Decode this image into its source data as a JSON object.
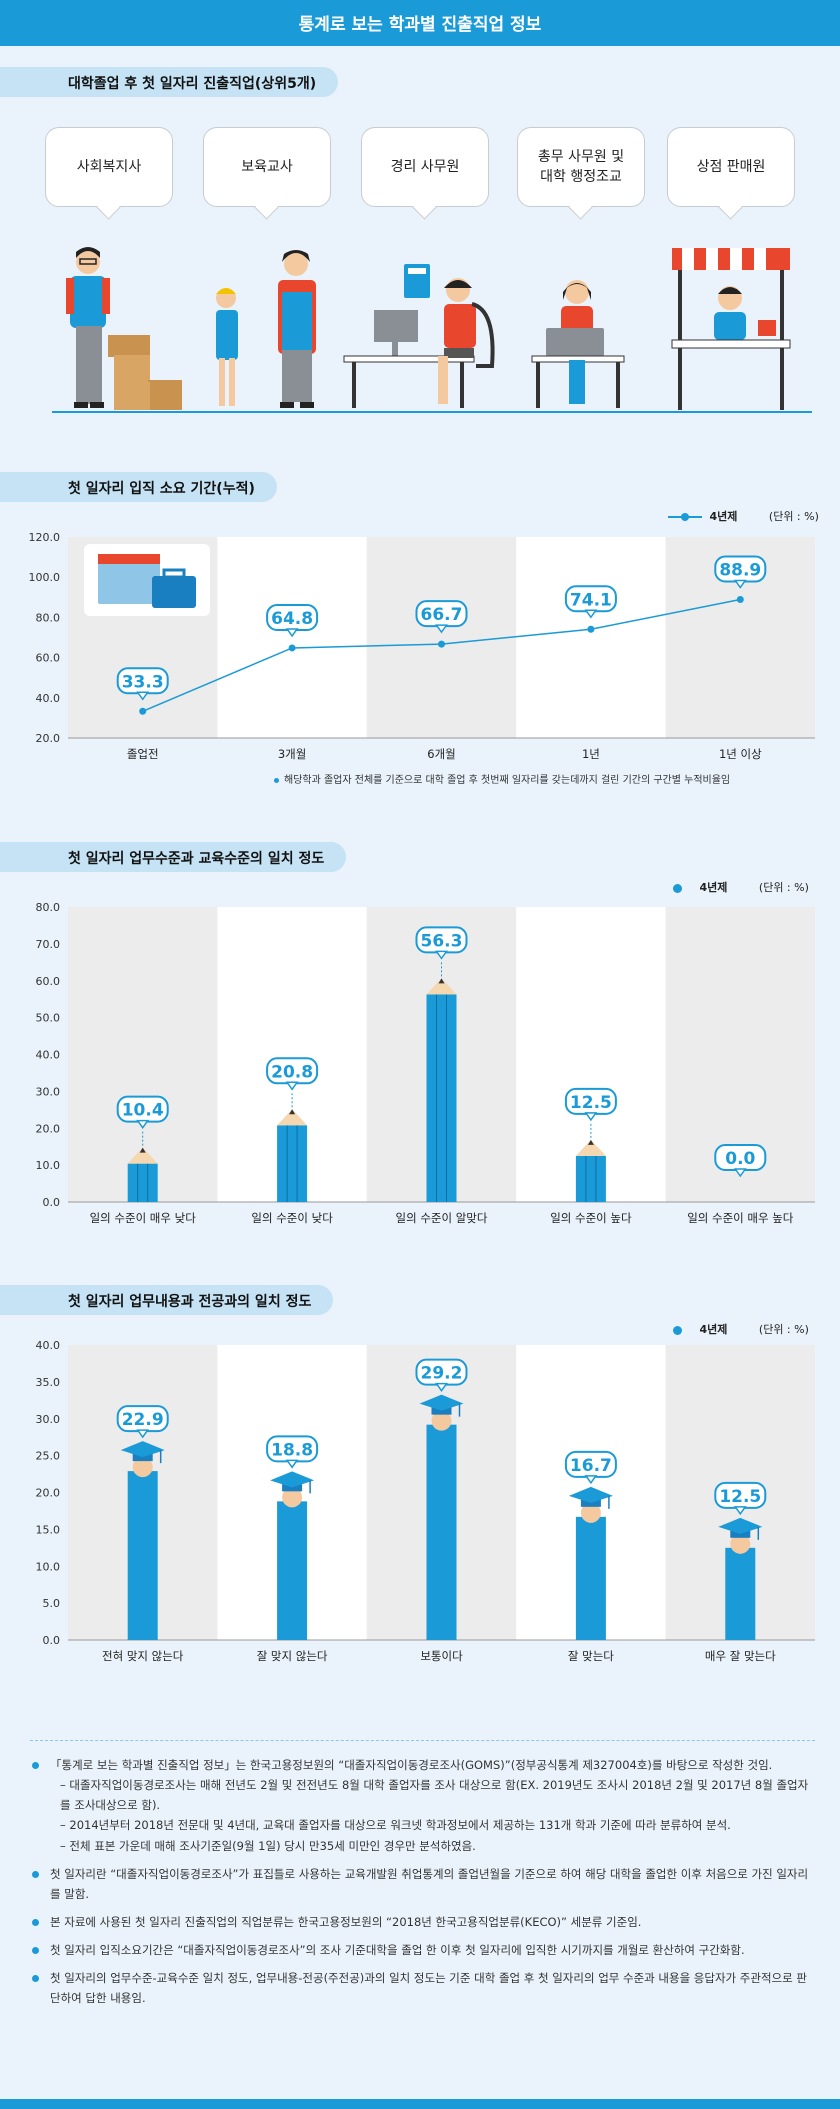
{
  "header": {
    "title": "통계로 보는 학과별 진출직업 정보"
  },
  "section1": {
    "title": "대학졸업 후 첫 일자리 진출직업(상위5개)",
    "jobs": [
      "사회복지사",
      "보육교사",
      "경리 사무원",
      "총무 사무원 및\n대학 행정조교",
      "상점 판매원"
    ]
  },
  "colors": {
    "accent": "#1a9ad6",
    "bar": "#1a9ad6",
    "pill": "#c5e3f5",
    "band": "#ececec",
    "background": "#eaf3fb"
  },
  "chart_data": [
    {
      "type": "line",
      "title": "첫 일자리 입직 소요 기간(누적)",
      "categories": [
        "졸업전",
        "3개월",
        "6개월",
        "1년",
        "1년 이상"
      ],
      "series": [
        {
          "name": "4년제",
          "values": [
            33.3,
            64.8,
            66.7,
            74.1,
            88.9
          ]
        }
      ],
      "ylim": [
        20,
        120
      ],
      "yticks": [
        "20.0",
        "40.0",
        "60.0",
        "80.0",
        "100.0",
        "120.0"
      ],
      "unit": "(단위 : %)",
      "note": "해당학과 졸업자 전체를 기준으로 대학 졸업 후 첫번째 일자리를 갖는데까지 걸린 기간의 구간별 누적비율임",
      "legend_position": "top-right",
      "icons": [
        "calendar-icon",
        "briefcase-icon"
      ]
    },
    {
      "type": "bar",
      "title": "첫 일자리 업무수준과 교육수준의 일치 정도",
      "categories": [
        "일의 수준이 매우 낮다",
        "일의 수준이 낮다",
        "일의 수준이 알맞다",
        "일의 수준이 높다",
        "일의 수준이 매우 높다"
      ],
      "series": [
        {
          "name": "4년제",
          "values": [
            10.4,
            20.8,
            56.3,
            12.5,
            0.0
          ]
        }
      ],
      "ylim": [
        0,
        80
      ],
      "yticks": [
        "0.0",
        "10.0",
        "20.0",
        "30.0",
        "40.0",
        "50.0",
        "60.0",
        "70.0",
        "80.0"
      ],
      "unit": "(단위 : %)",
      "legend_position": "top-right",
      "bar_style": "pencil"
    },
    {
      "type": "bar",
      "title": "첫 일자리 업무내용과 전공과의 일치 정도",
      "categories": [
        "전혀 맞지 않는다",
        "잘 맞지 않는다",
        "보통이다",
        "잘 맞는다",
        "매우 잘 맞는다"
      ],
      "series": [
        {
          "name": "4년제",
          "values": [
            22.9,
            18.8,
            29.2,
            16.7,
            12.5
          ]
        }
      ],
      "ylim": [
        0,
        40
      ],
      "yticks": [
        "0.0",
        "5.0",
        "10.0",
        "15.0",
        "20.0",
        "25.0",
        "30.0",
        "35.0",
        "40.0"
      ],
      "unit": "(단위 : %)",
      "legend_position": "top-right",
      "bar_style": "graduate"
    }
  ],
  "notes": [
    {
      "text": "「통계로 보는 학과별 진출직업 정보」는 한국고용정보원의 “대졸자직업이동경로조사(GOMS)”(정부공식통계 제327004호)를 바탕으로 작성한 것임.",
      "subs": [
        "– 대졸자직업이동경로조사는 매해 전년도 2월 및 전전년도 8월 대학 졸업자를 조사 대상으로 함(EX. 2019년도 조사시 2018년 2월 및 2017년 8월 졸업자를 조사대상으로 함).",
        "– 2014년부터 2018년 전문대 및 4년대, 교육대 졸업자를 대상으로 워크넷 학과정보에서 제공하는 131개 학과 기준에 따라 분류하여 분석.",
        "– 전체 표본 가운데 매해 조사기준일(9월 1일) 당시 만35세 미만인 경우만 분석하였음."
      ]
    },
    {
      "text": "첫 일자리란 “대졸자직업이동경로조사”가 표집틀로 사용하는 교육개발원 취업통계의 졸업년월을 기준으로 하여 해당 대학을 졸업한 이후 처음으로 가진 일자리를 말함.",
      "subs": []
    },
    {
      "text": "본 자료에 사용된 첫 일자리 진출직업의 직업분류는 한국고용정보원의 “2018년 한국고용직업분류(KECO)” 세분류 기준임.",
      "subs": []
    },
    {
      "text": "첫 일자리 입직소요기간은 “대졸자직업이동경로조사”의 조사 기준대학을 졸업 한 이후 첫 일자리에 입직한 시기까지를 개월로 환산하여 구간화함.",
      "subs": []
    },
    {
      "text": "첫 일자리의 업무수준-교육수준 일치 정도, 업무내용-전공(주전공)과의 일치 정도는 기준 대학 졸업 후 첫 일자리의 업무 수준과 내용을 응답자가 주관적으로 판단하여 답한 내용임.",
      "subs": []
    }
  ]
}
